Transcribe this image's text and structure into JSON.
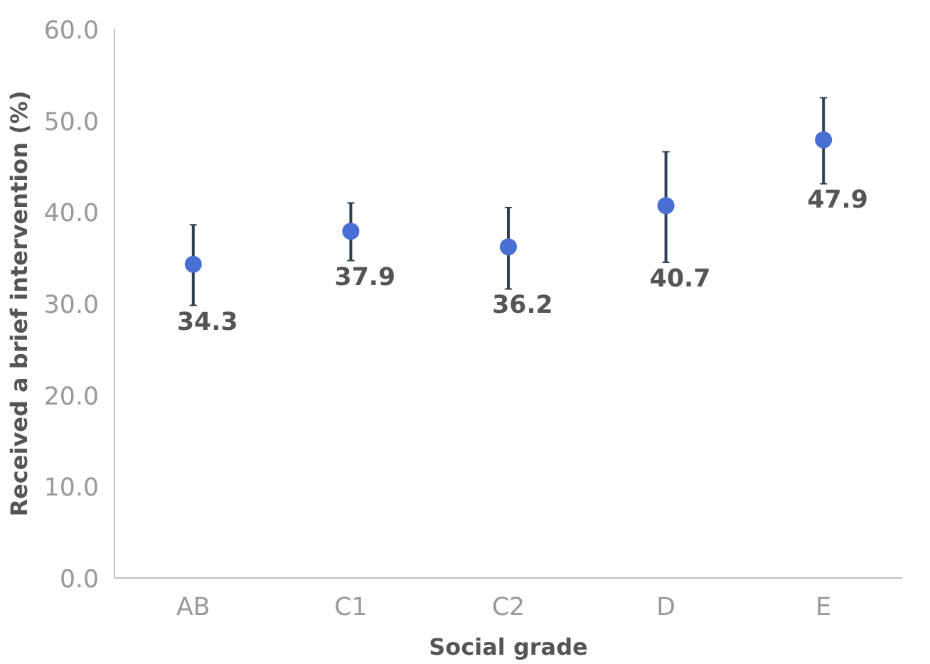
{
  "chart_data": {
    "type": "scatter",
    "xlabel": "Social grade",
    "ylabel": "Received a brief intervention (%)",
    "categories": [
      "AB",
      "C1",
      "C2",
      "D",
      "E"
    ],
    "series": [
      {
        "color": "#4a6fd4",
        "values": [
          34.3,
          37.9,
          36.2,
          40.7,
          47.9
        ],
        "errors": [
          [
            29.8,
            38.6
          ],
          [
            34.7,
            41.0
          ],
          [
            31.6,
            40.5
          ],
          [
            34.5,
            46.6
          ],
          [
            43.1,
            52.5
          ]
        ]
      }
    ],
    "data_labels": true,
    "marker": "circle",
    "grid": false,
    "ylim": [
      0,
      60
    ],
    "yticks": [
      {
        "value": 0,
        "label": "0.0"
      },
      {
        "value": 10,
        "label": "10.0"
      },
      {
        "value": 20,
        "label": "20.0"
      },
      {
        "value": 30,
        "label": "30.0"
      },
      {
        "value": 40,
        "label": "40.0"
      },
      {
        "value": 50,
        "label": "50.0"
      },
      {
        "value": 60,
        "label": "60.0"
      }
    ]
  }
}
